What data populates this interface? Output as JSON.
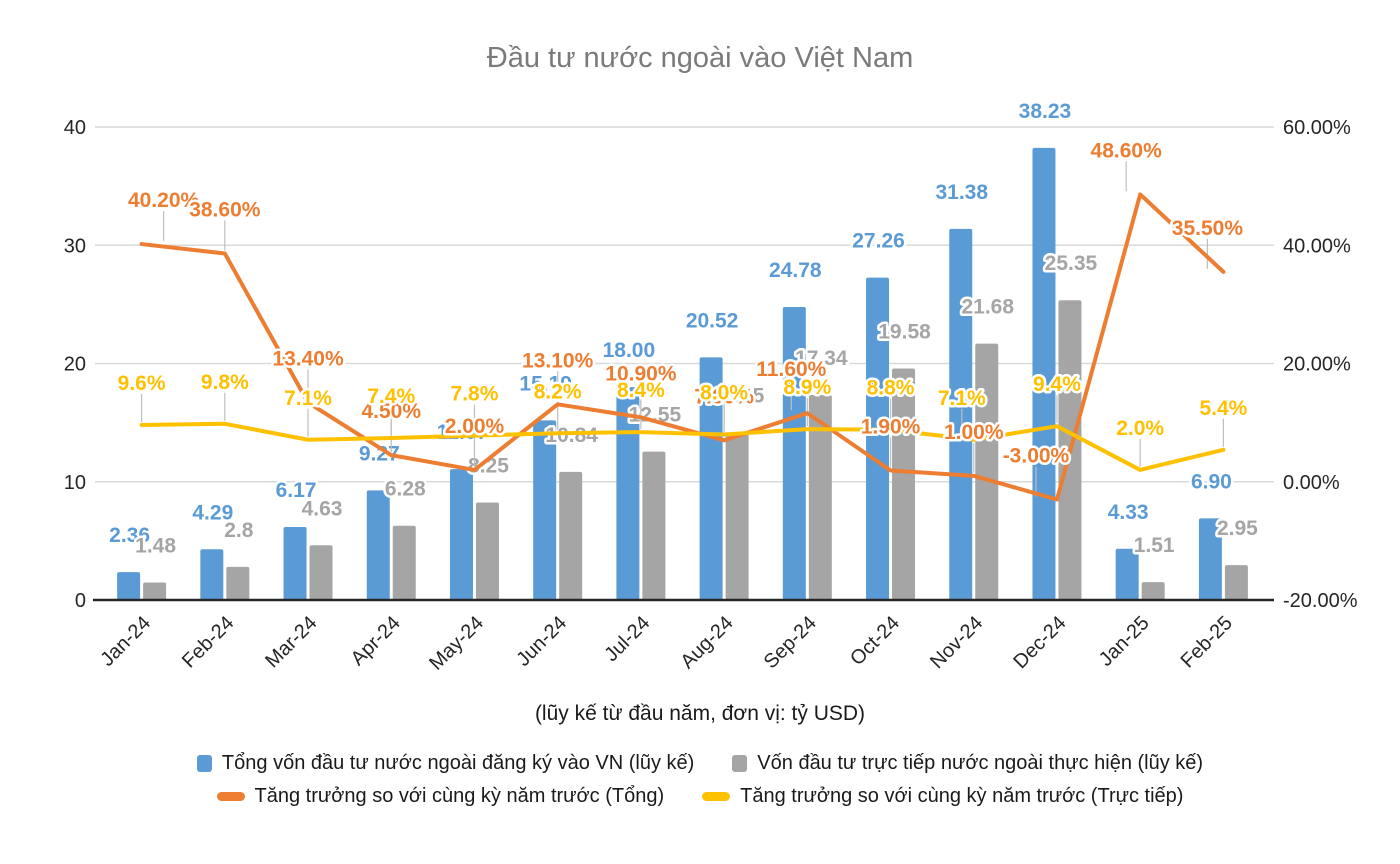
{
  "title": "Đầu tư nước ngoài vào Việt Nam",
  "subtitle": "(lũy kế từ đầu năm, đơn vị: tỷ USD)",
  "colors": {
    "registered": "#5B9BD5",
    "implemented": "#A5A5A5",
    "growth_total": "#ED7D31",
    "growth_direct": "#FFC000",
    "grid": "#D9D9D9",
    "axis_line": "#262626",
    "axis_text": "#262626",
    "title_text": "#7A7A7A",
    "leader_line": "#BFBFBF"
  },
  "chart_data": {
    "type": "combo bar+line",
    "categories": [
      "Jan-24",
      "Feb-24",
      "Mar-24",
      "Apr-24",
      "May-24",
      "Jun-24",
      "Jul-24",
      "Aug-24",
      "Sep-24",
      "Oct-24",
      "Nov-24",
      "Dec-24",
      "Jan-25",
      "Feb-25"
    ],
    "left_axis": {
      "range": [
        0,
        40
      ],
      "ticks": [
        0,
        10,
        20,
        30,
        40
      ],
      "tick_labels": [
        "0",
        "10",
        "20",
        "30",
        "40"
      ]
    },
    "right_axis": {
      "range": [
        -20,
        60
      ],
      "ticks": [
        -20,
        0,
        20,
        40,
        60
      ],
      "tick_labels": [
        "-20.00%",
        "0.00%",
        "20.00%",
        "40.00%",
        "60.00%"
      ]
    },
    "grid": "horizontal",
    "legend_position": "bottom",
    "series": [
      {
        "key": "registered",
        "name": "Tổng vốn đầu tư nước ngoài đăng ký vào VN (lũy kế)",
        "type": "bar",
        "axis": "left",
        "color": "#5B9BD5",
        "values": [
          2.36,
          4.29,
          6.17,
          9.27,
          11.07,
          15.19,
          18.0,
          20.52,
          24.78,
          27.26,
          31.38,
          38.23,
          4.33,
          6.9
        ],
        "labels": [
          "2.36",
          "4.29",
          "6.17",
          "9.27",
          "11.07",
          "15.19",
          "18.00",
          "20.52",
          "24.78",
          "27.26",
          "31.38",
          "38.23",
          "4.33",
          "6.90"
        ]
      },
      {
        "key": "implemented",
        "name": "Vốn đầu tư trực tiếp nước ngoài thực hiện (lũy kế)",
        "type": "bar",
        "axis": "left",
        "color": "#A5A5A5",
        "values": [
          1.48,
          2.8,
          4.63,
          6.28,
          8.25,
          10.84,
          12.55,
          14.15,
          17.34,
          19.58,
          21.68,
          25.35,
          1.51,
          2.95
        ],
        "labels": [
          "1.48",
          "2.8",
          "4.63",
          "6.28",
          "8.25",
          "10.84",
          "12.55",
          "14.15",
          "17.34",
          "19.58",
          "21.68",
          "25.35",
          "1.51",
          "2.95"
        ]
      },
      {
        "key": "growth_total",
        "name": "Tăng trưởng so với cùng kỳ năm trước (Tổng)",
        "type": "line",
        "axis": "right",
        "color": "#ED7D31",
        "values": [
          40.2,
          38.6,
          13.4,
          4.5,
          2.0,
          13.1,
          10.9,
          7.0,
          11.6,
          1.9,
          1.0,
          -3.0,
          48.6,
          35.5
        ],
        "labels": [
          "40.20%",
          "38.60%",
          "13.40%",
          "4.50%",
          "2.00%",
          "13.10%",
          "10.90%",
          "7.00%",
          "11.60%",
          "1.90%",
          "1.00%",
          "-3.00%",
          "48.60%",
          "35.50%"
        ]
      },
      {
        "key": "growth_direct",
        "name": "Tăng trưởng so với cùng kỳ năm trước (Trực tiếp)",
        "type": "line",
        "axis": "right",
        "color": "#FFC000",
        "values": [
          9.6,
          9.8,
          7.1,
          7.4,
          7.8,
          8.2,
          8.4,
          8.0,
          8.9,
          8.8,
          7.1,
          9.4,
          2.0,
          5.4
        ],
        "labels": [
          "9.6%",
          "9.8%",
          "7.1%",
          "7.4%",
          "7.8%",
          "8.2%",
          "8.4%",
          "8.0%",
          "8.9%",
          "8.8%",
          "7.1%",
          "9.4%",
          "2.0%",
          "5.4%"
        ]
      }
    ]
  },
  "legend": {
    "items": [
      {
        "label": "Tổng vốn đầu tư nước ngoài đăng ký vào VN (lũy kế)",
        "marker": "square",
        "color": "#5B9BD5"
      },
      {
        "label": "Vốn đầu tư trực tiếp nước ngoài thực hiện (lũy kế)",
        "marker": "square",
        "color": "#A5A5A5"
      },
      {
        "label": "Tăng trưởng so với cùng kỳ năm trước (Tổng)",
        "marker": "pill",
        "color": "#ED7D31"
      },
      {
        "label": "Tăng trưởng so với cùng kỳ năm trước (Trực tiếp)",
        "marker": "pill",
        "color": "#FFC000"
      }
    ]
  }
}
